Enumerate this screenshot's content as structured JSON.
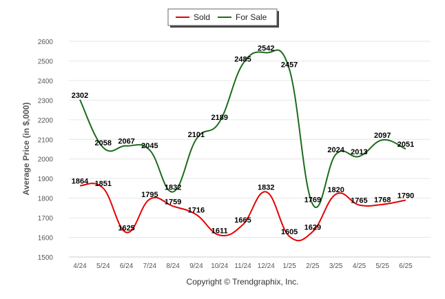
{
  "chart_data": {
    "type": "line",
    "title": "",
    "xlabel": "",
    "ylabel": "Average Price (in $,000)",
    "categories": [
      "4/24",
      "5/24",
      "6/24",
      "7/24",
      "8/24",
      "9/24",
      "10/24",
      "11/24",
      "12/24",
      "1/25",
      "2/25",
      "3/25",
      "4/25",
      "5/25",
      "6/25"
    ],
    "ylim": [
      1500,
      2600
    ],
    "yticks": [
      1500,
      1600,
      1700,
      1800,
      1900,
      2000,
      2100,
      2200,
      2300,
      2400,
      2500,
      2600
    ],
    "grid": true,
    "legend_position": "top-center",
    "series": [
      {
        "name": "Sold",
        "color": "#e60000",
        "values": [
          1864,
          1851,
          1625,
          1795,
          1759,
          1716,
          1611,
          1665,
          1832,
          1605,
          1629,
          1820,
          1765,
          1768,
          1790
        ]
      },
      {
        "name": "For Sale",
        "color": "#1a6b1a",
        "values": [
          2302,
          2058,
          2067,
          2045,
          1832,
          2101,
          2189,
          2485,
          2542,
          2457,
          1769,
          2024,
          2013,
          2097,
          2051
        ]
      }
    ],
    "footer": "Copyright © Trendgraphix, Inc."
  }
}
